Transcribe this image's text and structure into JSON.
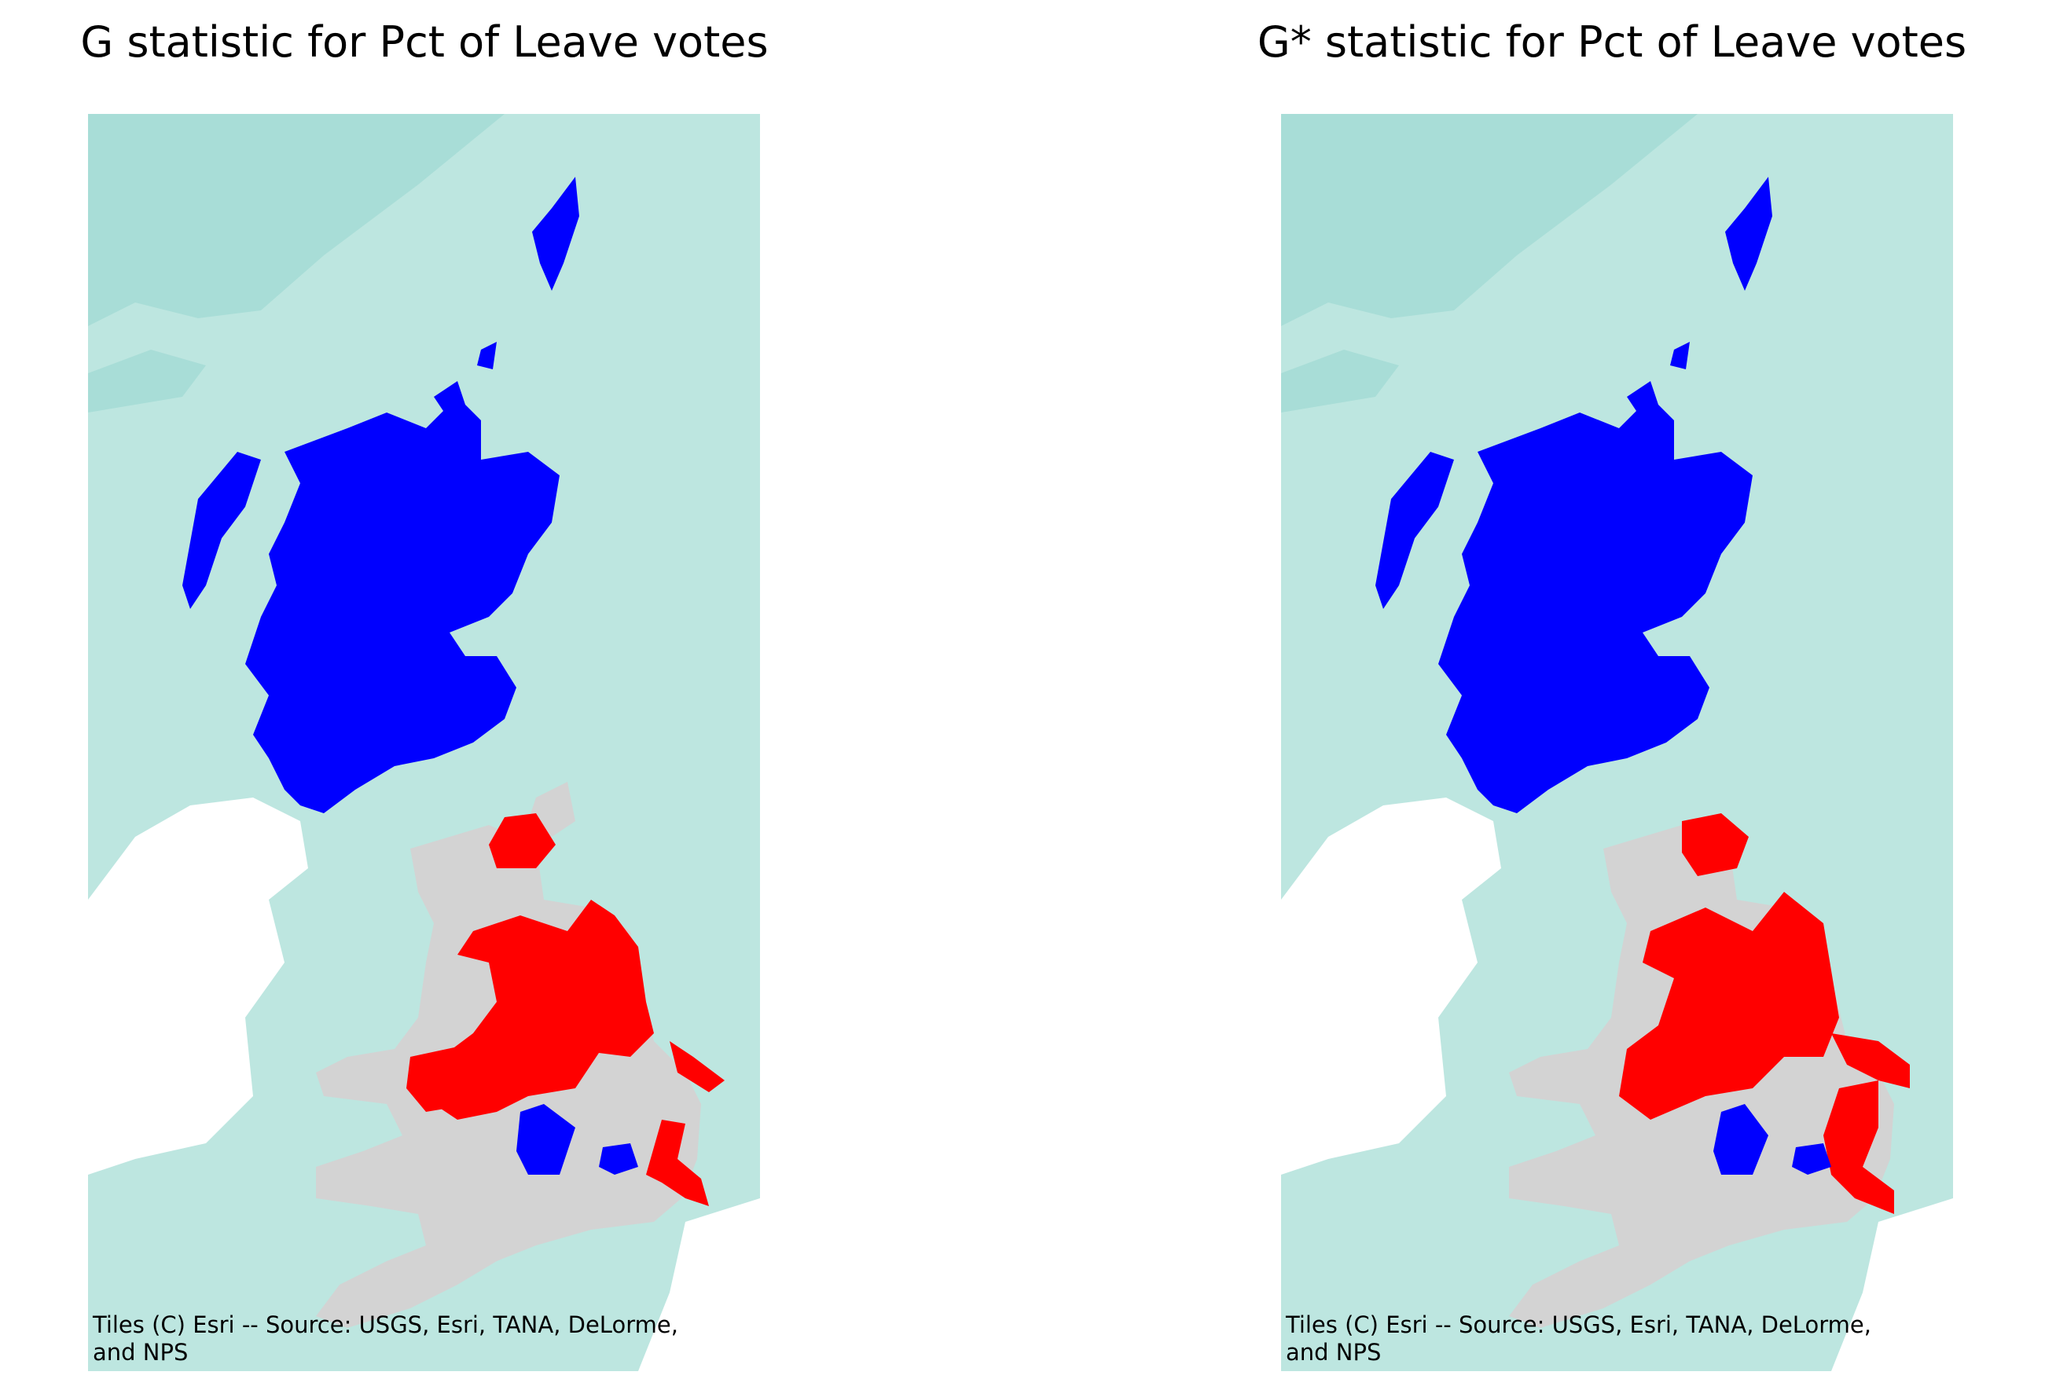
{
  "panels": [
    {
      "title": "G statistic for Pct of Leave votes",
      "attribution": "Tiles (C) Esri -- Source: USGS, Esri, TANA, DeLorme, and NPS"
    },
    {
      "title": "G* statistic for Pct of Leave votes",
      "attribution": "Tiles (C) Esri -- Source: USGS, Esri, TANA, DeLorme, and NPS"
    }
  ],
  "colors": {
    "sea": "#bde6e0",
    "sea_dark": "#a8ddd7",
    "land_foreign": "#ffffff",
    "not_significant": "#d3d3d3",
    "cold_spot": "#0000ff",
    "hot_spot": "#ff0000"
  }
}
